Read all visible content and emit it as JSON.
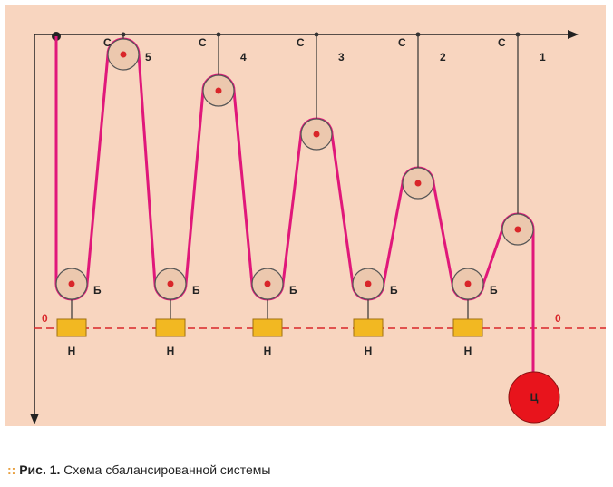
{
  "diagram": {
    "top_pulleys": [
      {
        "label": "С",
        "number": "5"
      },
      {
        "label": "С",
        "number": "4"
      },
      {
        "label": "С",
        "number": "3"
      },
      {
        "label": "С",
        "number": "2"
      },
      {
        "label": "С",
        "number": "1"
      }
    ],
    "bottom_pulleys": [
      "Б",
      "Б",
      "Б",
      "Б",
      "Б"
    ],
    "blocks": [
      "Н",
      "Н",
      "Н",
      "Н",
      "Н"
    ],
    "zero_labels": [
      "0",
      "0"
    ],
    "weight": "Ц"
  },
  "caption": {
    "number": "Рис. 1.",
    "text": "Схема сбалансированной системы"
  }
}
